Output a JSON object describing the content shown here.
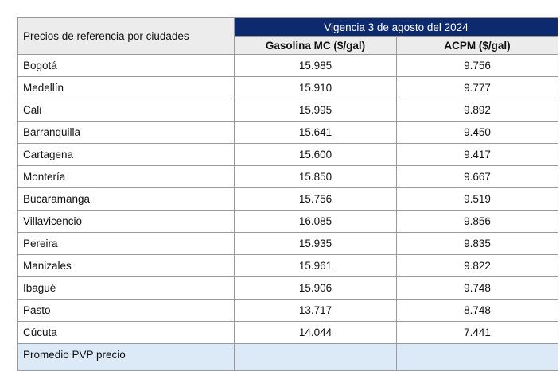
{
  "table": {
    "header": {
      "city_column": "Precios de referencia por ciudades",
      "period": "Vigencia 3 de agosto del 2024",
      "columns": [
        "Gasolina MC ($/gal)",
        "ACPM ($/gal)"
      ]
    },
    "rows": [
      [
        "Bogotá",
        "15.985",
        "9.756"
      ],
      [
        "Medellín",
        "15.910",
        "9.777"
      ],
      [
        "Cali",
        "15.995",
        "9.892"
      ],
      [
        "Barranquilla",
        "15.641",
        "9.450"
      ],
      [
        "Cartagena",
        "15.600",
        "9.417"
      ],
      [
        "Montería",
        "15.850",
        "9.667"
      ],
      [
        "Bucaramanga",
        "15.756",
        "9.519"
      ],
      [
        "Villavicencio",
        "16.085",
        "9.856"
      ],
      [
        "Pereira",
        "15.935",
        "9.835"
      ],
      [
        "Manizales",
        "15.961",
        "9.822"
      ],
      [
        "Ibagué",
        "15.906",
        "9.748"
      ],
      [
        "Pasto",
        "13.717",
        "8.748"
      ],
      [
        "Cúcuta",
        "14.044",
        "7.441"
      ]
    ],
    "footer_row": "Promedio PVP precio"
  }
}
